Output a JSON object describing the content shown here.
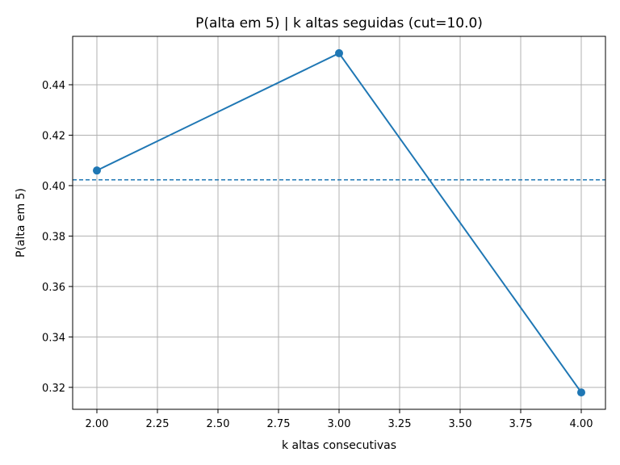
{
  "chart_data": {
    "type": "line",
    "title": "P(alta em 5) | k altas seguidas  (cut=10.0)",
    "xlabel": "k altas consecutivas",
    "ylabel": "P(alta em 5)",
    "x": [
      2.0,
      3.0,
      4.0
    ],
    "series": [
      {
        "values": [
          0.406,
          0.4525,
          0.318
        ],
        "color": "#1f77b4",
        "marker": "circle"
      }
    ],
    "reference_line": {
      "orientation": "horizontal",
      "y": 0.4023,
      "style": "dashed",
      "color": "#1f77b4"
    },
    "xlim": [
      1.9,
      4.1
    ],
    "ylim": [
      0.3113,
      0.4592
    ],
    "xticks": [
      "2.00",
      "2.25",
      "2.50",
      "2.75",
      "3.00",
      "3.25",
      "3.50",
      "3.75",
      "4.00"
    ],
    "yticks": [
      "0.32",
      "0.34",
      "0.36",
      "0.38",
      "0.40",
      "0.42",
      "0.44"
    ],
    "grid": true,
    "legend": "none"
  }
}
